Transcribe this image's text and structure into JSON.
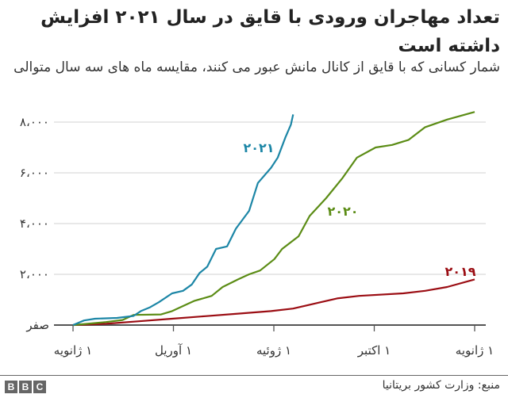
{
  "header": {
    "title": "تعداد مهاجران ورودی با قایق در سال ۲۰۲۱ افزایش داشته است",
    "subtitle": "شمار کسانی که با قایق از کانال مانش عبور می کنند، مقایسه ماه های سه سال متوالی"
  },
  "footer": {
    "source": "منبع: وزارت کشور بریتانیا",
    "logo_letters": [
      "B",
      "B",
      "C"
    ]
  },
  "colors": {
    "s2021": "#1c86a6",
    "s2020": "#5b8c15",
    "s2019": "#9b0d13",
    "grid": "#d9d9d9",
    "axis": "#555555"
  },
  "chart_data": {
    "type": "line",
    "title": "تعداد مهاجران ورودی با قایق در سال ۲۰۲۱ افزایش داشته است",
    "subtitle": "شمار کسانی که با قایق از کانال مانش عبور می کنند، مقایسه ماه های سه سال متوالی",
    "xlabel": "",
    "ylabel": "",
    "x_tick_labels": [
      "۱ ژانویه",
      "۱ آوریل",
      "۱ ژوئیه",
      "۱ اکتبر",
      "۱ ژانویه"
    ],
    "y_tick_labels": [
      "صفر",
      "۲،۰۰۰",
      "۴،۰۰۰",
      "۶،۰۰۰",
      "۸،۰۰۰"
    ],
    "y_ticks": [
      0,
      2000,
      4000,
      6000,
      8000
    ],
    "ylim": [
      0,
      8000
    ],
    "x_unit": "day_of_year",
    "xlim": [
      0,
      365
    ],
    "grid": true,
    "legend": "inline labels",
    "series": [
      {
        "name": "۲۰۲۱",
        "points": [
          [
            0,
            0
          ],
          [
            10,
            180
          ],
          [
            20,
            250
          ],
          [
            40,
            280
          ],
          [
            55,
            360
          ],
          [
            62,
            560
          ],
          [
            70,
            700
          ],
          [
            78,
            900
          ],
          [
            90,
            1250
          ],
          [
            100,
            1350
          ],
          [
            108,
            1600
          ],
          [
            115,
            2050
          ],
          [
            122,
            2300
          ],
          [
            130,
            3000
          ],
          [
            140,
            3100
          ],
          [
            148,
            3800
          ],
          [
            160,
            4500
          ],
          [
            168,
            5600
          ],
          [
            180,
            6200
          ],
          [
            186,
            6600
          ],
          [
            193,
            7400
          ],
          [
            198,
            7900
          ],
          [
            200,
            8300
          ]
        ]
      },
      {
        "name": "۲۰۲۰",
        "points": [
          [
            0,
            0
          ],
          [
            30,
            120
          ],
          [
            45,
            200
          ],
          [
            55,
            400
          ],
          [
            80,
            420
          ],
          [
            90,
            550
          ],
          [
            100,
            750
          ],
          [
            110,
            950
          ],
          [
            126,
            1150
          ],
          [
            136,
            1500
          ],
          [
            150,
            1800
          ],
          [
            160,
            2000
          ],
          [
            170,
            2150
          ],
          [
            183,
            2600
          ],
          [
            190,
            3000
          ],
          [
            205,
            3500
          ],
          [
            215,
            4300
          ],
          [
            230,
            5000
          ],
          [
            245,
            5800
          ],
          [
            258,
            6600
          ],
          [
            275,
            7000
          ],
          [
            290,
            7100
          ],
          [
            305,
            7300
          ],
          [
            320,
            7800
          ],
          [
            340,
            8100
          ],
          [
            365,
            8400
          ]
        ]
      },
      {
        "name": "۲۰۱۹",
        "points": [
          [
            0,
            0
          ],
          [
            30,
            50
          ],
          [
            60,
            150
          ],
          [
            90,
            250
          ],
          [
            120,
            350
          ],
          [
            150,
            450
          ],
          [
            180,
            550
          ],
          [
            200,
            650
          ],
          [
            225,
            900
          ],
          [
            240,
            1050
          ],
          [
            260,
            1150
          ],
          [
            300,
            1250
          ],
          [
            320,
            1350
          ],
          [
            340,
            1500
          ],
          [
            365,
            1800
          ]
        ]
      }
    ]
  }
}
